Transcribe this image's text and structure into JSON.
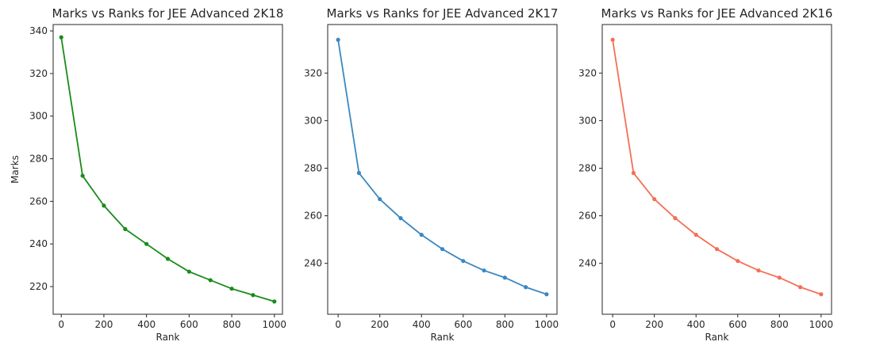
{
  "chart_data": [
    {
      "type": "line",
      "title": "Marks vs Ranks for JEE Advanced 2K18",
      "xlabel": "Rank",
      "ylabel": "Marks",
      "xlim": [
        -38,
        1038
      ],
      "ylim": [
        207,
        343
      ],
      "xticks": [
        0,
        200,
        400,
        600,
        800,
        1000
      ],
      "yticks": [
        220,
        240,
        260,
        280,
        300,
        320,
        340
      ],
      "color": "#1a8c1a",
      "marker": "circle",
      "grid": false,
      "x": [
        0,
        100,
        200,
        300,
        400,
        500,
        600,
        700,
        800,
        900,
        1000
      ],
      "y": [
        337,
        272,
        258,
        247,
        240,
        233,
        227,
        223,
        219,
        216,
        213
      ]
    },
    {
      "type": "line",
      "title": "Marks vs Ranks for JEE Advanced 2K17",
      "xlabel": "Rank",
      "ylabel": "",
      "xlim": [
        -50,
        1050
      ],
      "ylim": [
        218.6,
        340.4
      ],
      "xticks": [
        0,
        200,
        400,
        600,
        800,
        1000
      ],
      "yticks": [
        240,
        260,
        280,
        300,
        320
      ],
      "color": "#3a88c2",
      "marker": "circle",
      "grid": false,
      "x": [
        0,
        100,
        200,
        300,
        400,
        500,
        600,
        700,
        800,
        900,
        1000
      ],
      "y": [
        334,
        278,
        267,
        259,
        252,
        246,
        241,
        237,
        234,
        230,
        227
      ]
    },
    {
      "type": "line",
      "title": "Marks vs Ranks for JEE Advanced 2K16",
      "xlabel": "Rank",
      "ylabel": "",
      "xlim": [
        -50,
        1050
      ],
      "ylim": [
        218.6,
        340.4
      ],
      "xticks": [
        0,
        200,
        400,
        600,
        800,
        1000
      ],
      "yticks": [
        240,
        260,
        280,
        300,
        320
      ],
      "color": "#f46f55",
      "marker": "circle",
      "grid": false,
      "x": [
        0,
        100,
        200,
        300,
        400,
        500,
        600,
        700,
        800,
        900,
        1000
      ],
      "y": [
        334,
        278,
        267,
        259,
        252,
        246,
        241,
        237,
        234,
        230,
        227
      ]
    }
  ]
}
